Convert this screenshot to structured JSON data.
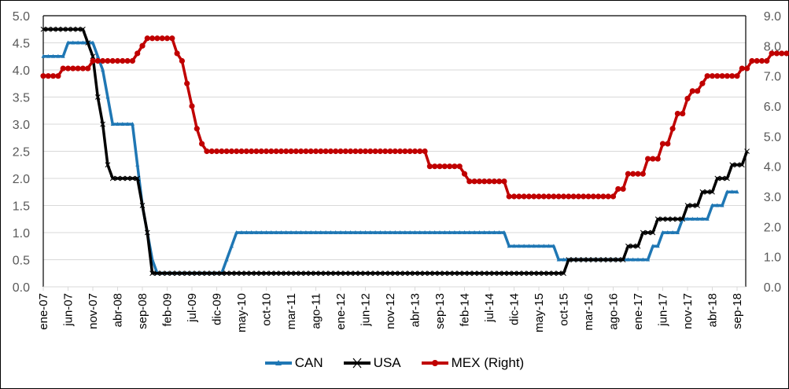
{
  "chart_data": {
    "type": "line",
    "title": "",
    "xlabel": "",
    "ylabel": "",
    "ylabel_right": "",
    "x_start": "ene-07",
    "x_frequency": "monthly",
    "x_tick_labels": [
      "ene-07",
      "jun-07",
      "nov-07",
      "abr-08",
      "sep-08",
      "feb-09",
      "jul-09",
      "dic-09",
      "may-10",
      "oct-10",
      "mar-11",
      "ago-11",
      "ene-12",
      "jun-12",
      "nov-12",
      "abr-13",
      "sep-13",
      "feb-14",
      "jul-14",
      "dic-14",
      "may-15",
      "oct-15",
      "mar-16",
      "ago-16",
      "ene-17",
      "jun-17",
      "nov-17",
      "abr-18",
      "sep-18"
    ],
    "y_left": {
      "min": 0,
      "max": 5,
      "step": 0.5,
      "ticks": [
        "0.0",
        "0.5",
        "1.0",
        "1.5",
        "2.0",
        "2.5",
        "3.0",
        "3.5",
        "4.0",
        "4.5",
        "5.0"
      ]
    },
    "y_right": {
      "min": 0,
      "max": 9,
      "step": 1,
      "ticks": [
        "0.0",
        "1.0",
        "2.0",
        "3.0",
        "4.0",
        "5.0",
        "6.0",
        "7.0",
        "8.0",
        "9.0"
      ]
    },
    "grid": true,
    "legend_position": "bottom",
    "series": [
      {
        "name": "CAN",
        "axis": "left",
        "color": "#1f77b4",
        "marker": "triangle",
        "runs": [
          [
            4.25,
            5
          ],
          [
            4.5,
            5
          ],
          [
            4.5,
            1
          ],
          [
            4.25,
            1
          ],
          [
            4.0,
            1
          ],
          [
            3.5,
            1
          ],
          [
            3.0,
            5
          ],
          [
            2.25,
            1
          ],
          [
            1.5,
            1
          ],
          [
            1.0,
            1
          ],
          [
            0.5,
            1
          ],
          [
            0.25,
            14
          ],
          [
            0.5,
            1
          ],
          [
            0.75,
            1
          ],
          [
            1.0,
            55
          ],
          [
            0.75,
            10
          ],
          [
            0.5,
            19
          ],
          [
            0.75,
            2
          ],
          [
            1.0,
            4
          ],
          [
            1.25,
            6
          ],
          [
            1.5,
            3
          ],
          [
            1.75,
            3
          ]
        ]
      },
      {
        "name": "USA",
        "axis": "left",
        "color": "#000000",
        "marker": "x",
        "runs": [
          [
            4.75,
            9
          ],
          [
            4.5,
            1
          ],
          [
            4.25,
            1
          ],
          [
            3.5,
            1
          ],
          [
            3.0,
            1
          ],
          [
            2.25,
            1
          ],
          [
            2.0,
            6
          ],
          [
            1.5,
            1
          ],
          [
            1.0,
            1
          ],
          [
            0.25,
            84
          ],
          [
            0.5,
            12
          ],
          [
            0.75,
            3
          ],
          [
            1.0,
            3
          ],
          [
            1.25,
            6
          ],
          [
            1.5,
            3
          ],
          [
            1.75,
            3
          ],
          [
            2.0,
            3
          ],
          [
            2.25,
            3
          ],
          [
            2.5,
            1
          ]
        ]
      },
      {
        "name": "MEX (Right)",
        "axis": "right",
        "color": "#c00000",
        "marker": "circle",
        "runs": [
          [
            7.0,
            4
          ],
          [
            7.25,
            6
          ],
          [
            7.5,
            9
          ],
          [
            7.75,
            1
          ],
          [
            8.0,
            1
          ],
          [
            8.25,
            6
          ],
          [
            7.75,
            1
          ],
          [
            7.5,
            1
          ],
          [
            6.75,
            1
          ],
          [
            6.0,
            1
          ],
          [
            5.25,
            1
          ],
          [
            4.75,
            1
          ],
          [
            4.5,
            45
          ],
          [
            4.0,
            7
          ],
          [
            3.75,
            1
          ],
          [
            3.5,
            8
          ],
          [
            3.0,
            22
          ],
          [
            3.25,
            2
          ],
          [
            3.75,
            4
          ],
          [
            4.25,
            3
          ],
          [
            4.75,
            2
          ],
          [
            5.25,
            1
          ],
          [
            5.75,
            2
          ],
          [
            6.25,
            1
          ],
          [
            6.5,
            2
          ],
          [
            6.75,
            1
          ],
          [
            7.0,
            7
          ],
          [
            7.25,
            2
          ],
          [
            7.5,
            4
          ],
          [
            7.75,
            5
          ],
          [
            8.0,
            1
          ],
          [
            8.25,
            1
          ]
        ]
      }
    ]
  },
  "legend": {
    "items": [
      {
        "label": "CAN",
        "color": "#1f77b4"
      },
      {
        "label": "USA",
        "color": "#000000"
      },
      {
        "label": "MEX (Right)",
        "color": "#c00000"
      }
    ]
  }
}
